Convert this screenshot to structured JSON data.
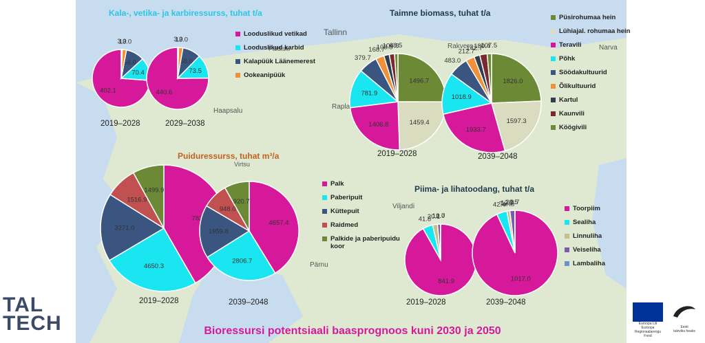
{
  "colors": {
    "magenta": "#d6199a",
    "cyan": "#19e6f0",
    "navy": "#3a5580",
    "orange": "#f0913a",
    "olive": "#6c8a36",
    "sage": "#d9dcbf",
    "dark": "#2e3e4e",
    "maroon": "#7a2a2e",
    "salmon": "#c15050",
    "purple": "#7a5ca8",
    "steel": "#6b93c8",
    "tan": "#c0c28a"
  },
  "map_labels": [
    "Tallinn",
    "Rakvere",
    "Narva",
    "Rapla",
    "Haapsalu",
    "Viljandi",
    "Tartu",
    "Pärnu",
    "Paldiski",
    "Virtsu"
  ],
  "footer": "Bioressursi potentsiaali baasprognoos kuni 2030 ja 2050",
  "logo": {
    "line1": "TAL",
    "line2": "TECH"
  },
  "eu_logo": {
    "lines": [
      "Euroopa Liit",
      "Euroopa",
      "Regionaalarengu Fond"
    ]
  },
  "ef_logo": {
    "lines": [
      "Eesti",
      "tuleviku heaks"
    ]
  },
  "chart_data": [
    {
      "id": "kala",
      "type": "pie",
      "title": "Kala-, vetika- ja karbiressurss, tuhat t/a",
      "title_color": "#2bc6e6",
      "legend": [
        {
          "label": "Looduslikud vetikad",
          "color": "#d6199a"
        },
        {
          "label": "Looduslikud karbid",
          "color": "#19e6f0"
        },
        {
          "label": "Kalapüük Läänemerest",
          "color": "#3a5580"
        },
        {
          "label": "Ookeanipüük",
          "color": "#f0913a"
        }
      ],
      "series": [
        {
          "name": "2019–2028",
          "slices": [
            {
              "label": "Looduslikud vetikad",
              "value": 402.1
            },
            {
              "label": "Looduslikud karbid",
              "value": 70.4
            },
            {
              "label": "Kalapüük Läänemerest",
              "value": 56.0
            },
            {
              "label": "Ookeanipüük",
              "value": 13.0
            },
            {
              "label": "Muu",
              "value": 3.0
            }
          ]
        },
        {
          "name": "2029–2038",
          "slices": [
            {
              "label": "Looduslikud vetikad",
              "value": 440.6
            },
            {
              "label": "Looduslikud karbid",
              "value": 73.5
            },
            {
              "label": "Kalapüük Läänemerest",
              "value": 56.0
            },
            {
              "label": "Ookeanipüük",
              "value": 13.0
            },
            {
              "label": "Muu",
              "value": 3.0
            }
          ]
        }
      ]
    },
    {
      "id": "taimne",
      "type": "pie",
      "title": "Taimne biomass, tuhat t/a",
      "title_color": "#1e3a4a",
      "legend": [
        {
          "label": "Püsirohumaa hein",
          "color": "#6c8a36"
        },
        {
          "label": "Lühiajal. rohumaa hein",
          "color": "#d9dcbf"
        },
        {
          "label": "Teravili",
          "color": "#d6199a"
        },
        {
          "label": "Põhk",
          "color": "#19e6f0"
        },
        {
          "label": "Söödakultuurid",
          "color": "#3a5580"
        },
        {
          "label": "Õlikultuurid",
          "color": "#f0913a"
        },
        {
          "label": "Kartul",
          "color": "#2e3e4e"
        },
        {
          "label": "Kaunvili",
          "color": "#7a2a2e"
        },
        {
          "label": "Köögivili",
          "color": "#6c8a36"
        }
      ],
      "series": [
        {
          "name": "2019–2028",
          "slices": [
            {
              "label": "Püsirohumaa hein",
              "value": 1496.7
            },
            {
              "label": "Lühiajal. rohumaa hein",
              "value": 1459.4
            },
            {
              "label": "Teravili",
              "value": 1406.8
            },
            {
              "label": "Põhk",
              "value": 781.9
            },
            {
              "label": "Söödakultuurid",
              "value": 379.7
            },
            {
              "label": "Õlikultuurid",
              "value": 168.7
            },
            {
              "label": "Kartul",
              "value": 108.8
            },
            {
              "label": "Kaunvili",
              "value": 104.8
            },
            {
              "label": "Köögivili",
              "value": 68.5
            }
          ]
        },
        {
          "name": "2039–2048",
          "slices": [
            {
              "label": "Püsirohumaa hein",
              "value": 1826.0
            },
            {
              "label": "Lühiajal. rohumaa hein",
              "value": 1597.3
            },
            {
              "label": "Teravili",
              "value": 1933.7
            },
            {
              "label": "Põhk",
              "value": 1018.9
            },
            {
              "label": "Söödakultuurid",
              "value": 483.0
            },
            {
              "label": "Õlikultuurid",
              "value": 212.7
            },
            {
              "label": "Kartul",
              "value": 142.7
            },
            {
              "label": "Kaunvili",
              "value": 180.4
            },
            {
              "label": "Köögivili",
              "value": 107.5
            }
          ]
        }
      ]
    },
    {
      "id": "puidu",
      "type": "pie",
      "title": "Puiduressurss, tuhat m³/a",
      "title_color": "#c0621e",
      "legend": [
        {
          "label": "Palk",
          "color": "#d6199a"
        },
        {
          "label": "Paberipuit",
          "color": "#19e6f0"
        },
        {
          "label": "Küttepuit",
          "color": "#3a5580"
        },
        {
          "label": "Raidmed",
          "color": "#c15050"
        },
        {
          "label": "Palkide ja paberipuidu koor",
          "color": "#6c8a36"
        }
      ],
      "series": [
        {
          "name": "2019–2028",
          "slices": [
            {
              "label": "Palk",
              "value": 7823.4
            },
            {
              "label": "Paberipuit",
              "value": 4650.3
            },
            {
              "label": "Küttepuit",
              "value": 3271.0
            },
            {
              "label": "Raidmed",
              "value": 1516.9
            },
            {
              "label": "Palkide ja paberipuidu koor",
              "value": 1499.9
            }
          ]
        },
        {
          "name": "2039–2048",
          "slices": [
            {
              "label": "Palk",
              "value": 4657.4
            },
            {
              "label": "Paberipuit",
              "value": 2806.7
            },
            {
              "label": "Küttepuit",
              "value": 1959.8
            },
            {
              "label": "Raidmed",
              "value": 948.0
            },
            {
              "label": "Palkide ja paberipuidu koor",
              "value": 920.7
            }
          ]
        }
      ]
    },
    {
      "id": "piima",
      "type": "pie",
      "title": "Piima- ja lihatoodang, tuhat t/a",
      "title_color": "#1e3a4a",
      "legend": [
        {
          "label": "Toorpiim",
          "color": "#d6199a"
        },
        {
          "label": "Sealiha",
          "color": "#19e6f0"
        },
        {
          "label": "Linnuliha",
          "color": "#c0c28a"
        },
        {
          "label": "Veiseliha",
          "color": "#7a5ca8"
        },
        {
          "label": "Lambaliha",
          "color": "#6b93c8"
        }
      ],
      "series": [
        {
          "name": "2019–2028",
          "slices": [
            {
              "label": "Toorpiim",
              "value": 841.9
            },
            {
              "label": "Sealiha",
              "value": 41.8
            },
            {
              "label": "Linnuliha",
              "value": 20.1
            },
            {
              "label": "Veiseliha",
              "value": 12.0
            },
            {
              "label": "Lambaliha",
              "value": 0.7
            }
          ]
        },
        {
          "name": "2039–2048",
          "slices": [
            {
              "label": "Toorpiim",
              "value": 1017.0
            },
            {
              "label": "Sealiha",
              "value": 42.4
            },
            {
              "label": "Linnuliha",
              "value": 12.3
            },
            {
              "label": "Veiseliha",
              "value": 20.5
            },
            {
              "label": "Lambaliha",
              "value": 0.7
            }
          ]
        }
      ]
    }
  ]
}
